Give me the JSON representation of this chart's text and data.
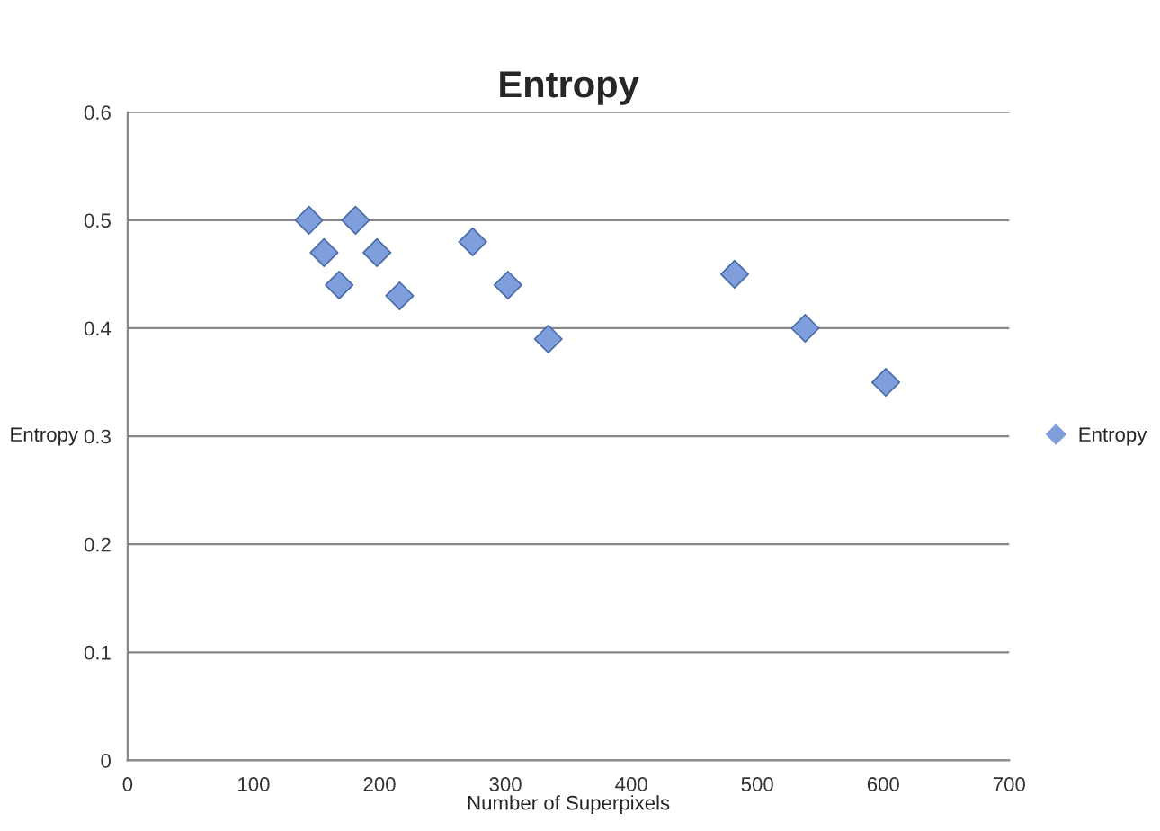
{
  "chart_data": {
    "type": "scatter",
    "title": "Entropy",
    "xlabel": "Number of Superpixels",
    "ylabel": "Entropy",
    "x": [
      144,
      181,
      156,
      198,
      168,
      216,
      274,
      302,
      334,
      482,
      538,
      602
    ],
    "series": [
      {
        "name": "Entropy",
        "color": "#7f9fdc",
        "values": [
          0.5,
          0.5,
          0.47,
          0.47,
          0.44,
          0.43,
          0.48,
          0.44,
          0.39,
          0.45,
          0.4,
          0.35
        ]
      }
    ],
    "xlim": [
      0,
      700
    ],
    "xticks": [
      0,
      100,
      200,
      300,
      400,
      500,
      600,
      700
    ],
    "ylim": [
      0,
      0.6
    ],
    "yticks": [
      0,
      0.1,
      0.2,
      0.3,
      0.4,
      0.5,
      0.6
    ],
    "grid": "y",
    "legend": "right",
    "marker": "diamond"
  }
}
